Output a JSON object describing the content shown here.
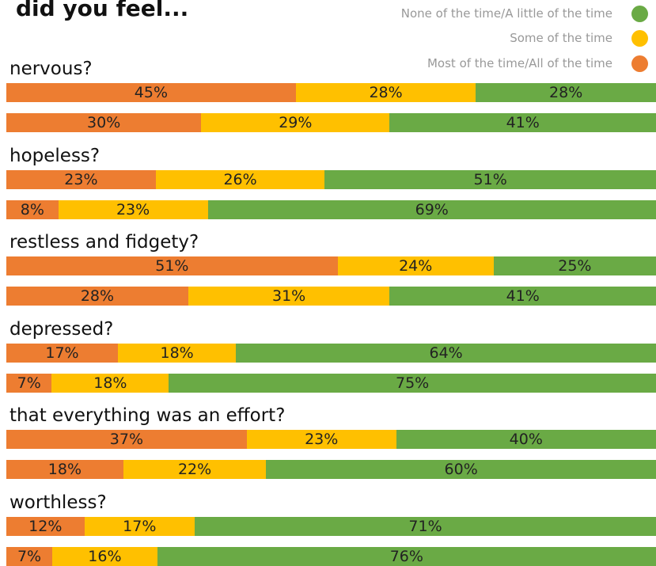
{
  "title": "did you feel...",
  "colors": {
    "none": "#6AAA45",
    "some": "#FFC000",
    "most": "#ED7D31"
  },
  "legend": [
    {
      "key": "none",
      "label": "None of the time/A little of the time"
    },
    {
      "key": "some",
      "label": "Some of the time"
    },
    {
      "key": "most",
      "label": "Most of the time/All of the time"
    }
  ],
  "chart_data": {
    "type": "bar",
    "orientation": "horizontal-stacked-100",
    "title": "did you feel...",
    "series_names": [
      "Most of the time/All of the time",
      "Some of the time",
      "None of the time/A little of the time"
    ],
    "groups": [
      {
        "label": "nervous?",
        "bars": [
          [
            45,
            28,
            28
          ],
          [
            30,
            29,
            41
          ]
        ]
      },
      {
        "label": "hopeless?",
        "bars": [
          [
            23,
            26,
            51
          ],
          [
            8,
            23,
            69
          ]
        ]
      },
      {
        "label": "restless and fidgety?",
        "bars": [
          [
            51,
            24,
            25
          ],
          [
            28,
            31,
            41
          ]
        ]
      },
      {
        "label": "depressed?",
        "bars": [
          [
            17,
            18,
            64
          ],
          [
            7,
            18,
            75
          ]
        ]
      },
      {
        "label": "that everything was an effort?",
        "bars": [
          [
            37,
            23,
            40
          ],
          [
            18,
            22,
            60
          ]
        ]
      },
      {
        "label": "worthless?",
        "bars": [
          [
            12,
            17,
            71
          ],
          [
            7,
            16,
            76
          ]
        ]
      }
    ]
  }
}
